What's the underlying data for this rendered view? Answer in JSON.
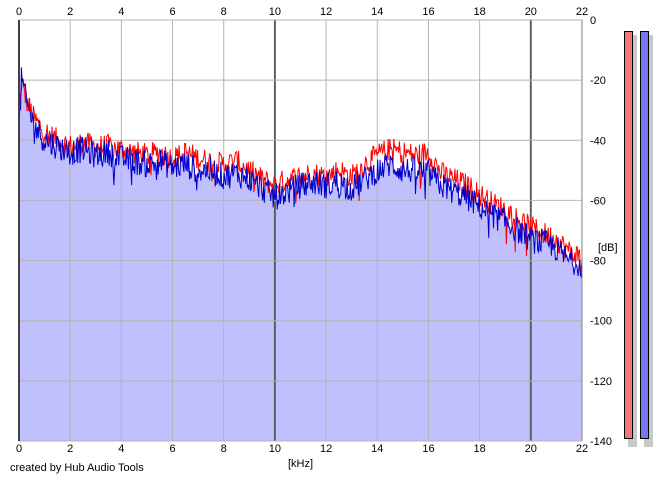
{
  "chart_data": {
    "type": "area",
    "title": "",
    "xlabel": "[kHz]",
    "ylabel": "[dB]",
    "xlim": [
      0,
      22
    ],
    "ylim": [
      -140,
      0
    ],
    "x_ticks": [
      "0",
      "2",
      "4",
      "6",
      "8",
      "10",
      "12",
      "14",
      "16",
      "18",
      "20",
      "22"
    ],
    "y_ticks": [
      "0",
      "-20",
      "-40",
      "-60",
      "-80",
      "-100",
      "-120",
      "-140"
    ],
    "grid": true,
    "series": [
      {
        "color": "#ff0000",
        "x": [
          0,
          0.1,
          0.3,
          0.6,
          1.0,
          1.5,
          2.0,
          2.5,
          3.0,
          3.5,
          4.0,
          4.5,
          5.0,
          5.5,
          6.0,
          6.5,
          7.0,
          7.5,
          8.0,
          8.5,
          9.0,
          9.5,
          10.0,
          10.5,
          11.0,
          11.5,
          12.0,
          12.5,
          13.0,
          13.5,
          14.0,
          14.5,
          15.0,
          15.5,
          16.0,
          16.5,
          17.0,
          17.5,
          18.0,
          18.5,
          19.0,
          19.5,
          20.0,
          20.5,
          21.0,
          21.5,
          22.0
        ],
        "y": [
          -35,
          -20,
          -27,
          -33,
          -37,
          -40,
          -42,
          -41,
          -42,
          -42,
          -43,
          -44,
          -45,
          -44,
          -46,
          -44,
          -46,
          -47,
          -48,
          -47,
          -50,
          -53,
          -55,
          -53,
          -52,
          -51,
          -52,
          -50,
          -52,
          -48,
          -45,
          -43,
          -44,
          -45,
          -44,
          -51,
          -53,
          -55,
          -58,
          -61,
          -63,
          -66,
          -69,
          -71,
          -73,
          -77,
          -79
        ]
      },
      {
        "color": "#0000cc",
        "x": [
          0,
          0.1,
          0.3,
          0.6,
          1.0,
          1.5,
          2.0,
          2.5,
          3.0,
          3.5,
          4.0,
          4.5,
          5.0,
          5.5,
          6.0,
          6.5,
          7.0,
          7.5,
          8.0,
          8.5,
          9.0,
          9.5,
          10.0,
          10.5,
          11.0,
          11.5,
          12.0,
          12.5,
          13.0,
          13.5,
          14.0,
          14.5,
          15.0,
          15.5,
          16.0,
          16.5,
          17.0,
          17.5,
          18.0,
          18.5,
          19.0,
          19.5,
          20.0,
          20.5,
          21.0,
          21.5,
          22.0
        ],
        "y": [
          -38,
          -19,
          -28,
          -35,
          -40,
          -42,
          -44,
          -43,
          -45,
          -44,
          -46,
          -47,
          -48,
          -47,
          -49,
          -48,
          -50,
          -50,
          -52,
          -51,
          -53,
          -56,
          -59,
          -57,
          -55,
          -54,
          -55,
          -54,
          -56,
          -53,
          -50,
          -48,
          -50,
          -50,
          -51,
          -55,
          -57,
          -59,
          -62,
          -65,
          -67,
          -70,
          -73,
          -74,
          -76,
          -80,
          -81
        ]
      }
    ]
  },
  "footer": {
    "credit": "created by Hub Audio Tools"
  },
  "meters": {
    "left_color": "#f07878",
    "right_color": "#7878f0"
  },
  "colors": {
    "fill": "#c0c0ff",
    "grid": "#b4b4b4",
    "major_grid": "#606060"
  }
}
